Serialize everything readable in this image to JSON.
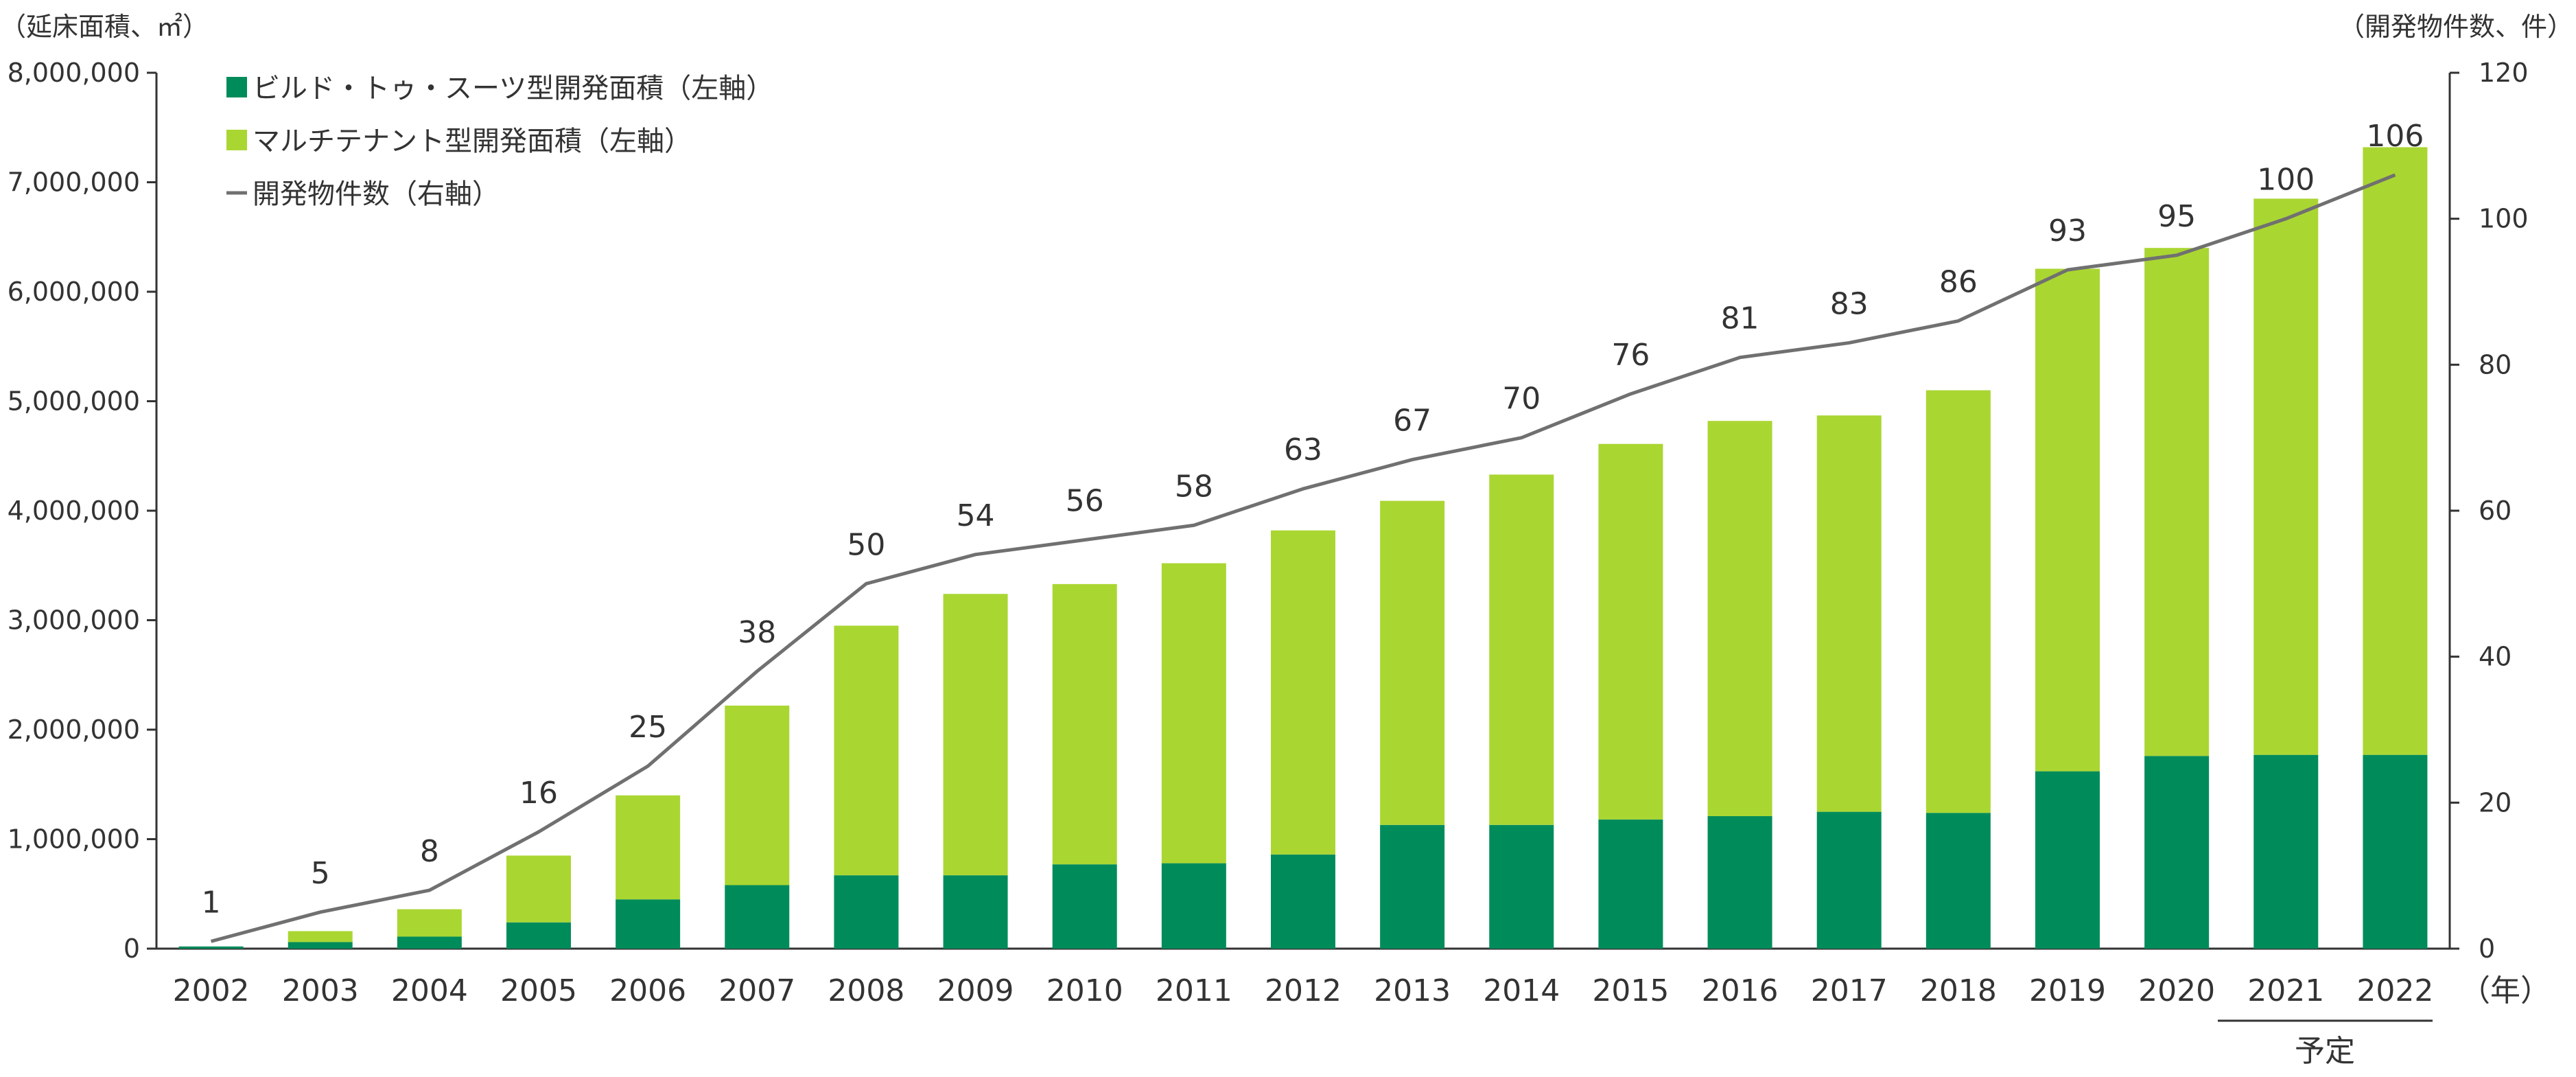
{
  "chart_data": {
    "type": "bar",
    "stacked": true,
    "left_axis_label": "（延床面積、㎡）",
    "right_axis_label": "（開発物件数、件）",
    "x_unit_label": "（年）",
    "planned_label": "予定",
    "planned_years": [
      "2021",
      "2022"
    ],
    "categories": [
      "2002",
      "2003",
      "2004",
      "2005",
      "2006",
      "2007",
      "2008",
      "2009",
      "2010",
      "2011",
      "2012",
      "2013",
      "2014",
      "2015",
      "2016",
      "2017",
      "2018",
      "2019",
      "2020",
      "2021",
      "2022"
    ],
    "left_axis": {
      "min": 0,
      "max": 8000000,
      "ticks": [
        "0",
        "1,000,000",
        "2,000,000",
        "3,000,000",
        "4,000,000",
        "5,000,000",
        "6,000,000",
        "7,000,000",
        "8,000,000"
      ]
    },
    "right_axis": {
      "min": 0,
      "max": 120,
      "ticks": [
        "0",
        "20",
        "40",
        "60",
        "80",
        "100",
        "120"
      ]
    },
    "series": [
      {
        "name": "ビルド・トゥ・スーツ型開発面積（左軸）",
        "kind": "bar",
        "axis": "left",
        "color": "#008c5a",
        "values": [
          20000,
          60000,
          110000,
          240000,
          450000,
          580000,
          670000,
          670000,
          770000,
          780000,
          860000,
          1130000,
          1130000,
          1180000,
          1210000,
          1250000,
          1240000,
          1620000,
          1760000,
          1770000,
          1770000
        ]
      },
      {
        "name": "マルチテナント型開発面積（左軸）",
        "kind": "bar",
        "axis": "left",
        "color": "#aad632",
        "values": [
          0,
          100000,
          250000,
          610000,
          950000,
          1640000,
          2280000,
          2570000,
          2560000,
          2740000,
          2960000,
          2960000,
          3200000,
          3430000,
          3610000,
          3620000,
          3860000,
          4590000,
          4640000,
          5080000,
          5550000
        ]
      },
      {
        "name": "開発物件数（右軸）",
        "kind": "line",
        "axis": "right",
        "color": "#707070",
        "values": [
          1,
          5,
          8,
          16,
          25,
          38,
          50,
          54,
          56,
          58,
          63,
          67,
          70,
          76,
          81,
          83,
          86,
          93,
          95,
          100,
          106
        ],
        "labels": [
          "1",
          "5",
          "8",
          "16",
          "25",
          "38",
          "50",
          "54",
          "56",
          "58",
          "63",
          "67",
          "70",
          "76",
          "81",
          "83",
          "86",
          "93",
          "95",
          "100",
          "106"
        ]
      }
    ],
    "legend_position": "top-left",
    "grid": false
  }
}
